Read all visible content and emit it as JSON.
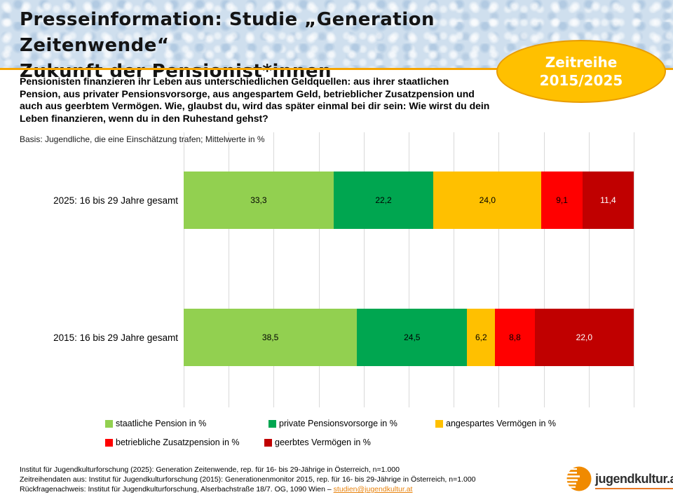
{
  "slide": {
    "title_line1": "Presseinformation: Studie „Generation Zeitenwende“",
    "title_line2": "Zukunft der Pensionist*innen",
    "badge": {
      "line1": "Zeitreihe",
      "line2": "2015/2025"
    },
    "intro": "Pensionisten finanzieren ihr Leben aus unterschiedlichen Geldquellen: aus ihrer staatlichen Pension, aus privater Pensionsvorsorge, aus angespartem Geld, betrieblicher Zusatzpension und auch aus geerbtem Vermögen. Wie, glaubst du, wird das später einmal bei dir sein: Wie wirst du dein Leben finanzieren, wenn du in den Ruhestand gehst?",
    "basis_note": "Basis: Jugendliche, die eine Einschätzung trafen; Mittelwerte in %"
  },
  "chart_data": {
    "type": "bar",
    "orientation": "horizontal",
    "stacked": true,
    "grid": true,
    "gridline_step": 10,
    "xlim": [
      0,
      100
    ],
    "legend_position": "bottom",
    "categories": [
      "2025: 16 bis 29 Jahre gesamt",
      "2015: 16 bis 29 Jahre gesamt"
    ],
    "series": [
      {
        "name": "staatliche Pension in %",
        "color": "#92d050",
        "label_color": "#000000",
        "values": [
          33.3,
          38.5
        ]
      },
      {
        "name": "private Pensionsvorsorge in %",
        "color": "#00a650",
        "label_color": "#000000",
        "values": [
          22.2,
          24.5
        ]
      },
      {
        "name": "angespartes Vermögen in %",
        "color": "#ffc000",
        "label_color": "#000000",
        "values": [
          24.0,
          6.2
        ]
      },
      {
        "name": "betriebliche Zusatzpension in %",
        "color": "#ff0000",
        "label_color": "#000000",
        "values": [
          9.1,
          8.8
        ]
      },
      {
        "name": "geerbtes Vermögen in %",
        "color": "#c00000",
        "label_color": "#ffffff",
        "values": [
          11.4,
          22.0
        ]
      }
    ],
    "value_labels": [
      [
        "33,3",
        "22,2",
        "24,0",
        "9,1",
        "11,4"
      ],
      [
        "38,5",
        "24,5",
        "6,2",
        "8,8",
        "22,0"
      ]
    ]
  },
  "footer": {
    "line1": "Institut für Jugendkulturforschung (2025): Generation Zeitenwende, rep. für 16- bis 29-Jährige in Österreich, n=1.000",
    "line2": "Zeitreihendaten aus: Institut für Jugendkulturforschung (2015): Generationenmonitor 2015, rep. für 16- bis 29-Jährige in Österreich, n=1.000",
    "line3_prefix": "Rückfragenachweis: Institut für Jugendkulturforschung, Alserbachstraße 18/7. OG, 1090 Wien – ",
    "email_link": "studien@jugendkultur.at"
  },
  "logo": {
    "text": "jugendkultur.at"
  },
  "colors": {
    "accent_line": "#f6a500",
    "badge_fill": "#ffc000",
    "badge_border": "#e89c00",
    "gridline": "#d9d9d9",
    "email_link": "#e8820c",
    "logo_orange": "#f08a00"
  }
}
